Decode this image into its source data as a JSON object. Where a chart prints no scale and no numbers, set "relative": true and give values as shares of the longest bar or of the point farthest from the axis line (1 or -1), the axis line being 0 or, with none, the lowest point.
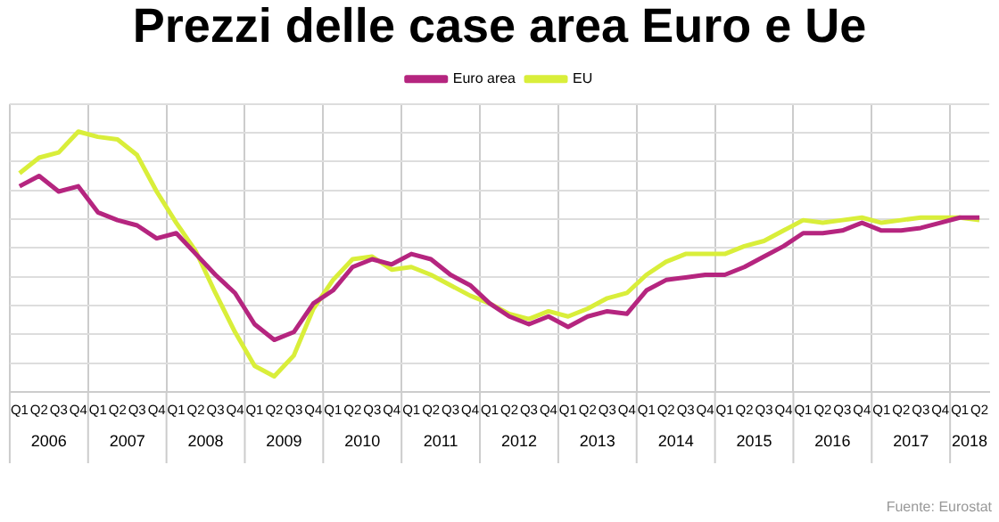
{
  "chart_data": {
    "type": "line",
    "title": "Prezzi delle case area Euro e Ue",
    "relative": true,
    "grid": true,
    "legend": "top",
    "categories": [
      "Q1",
      "Q2",
      "Q3",
      "Q4",
      "Q1",
      "Q2",
      "Q3",
      "Q4",
      "Q1",
      "Q2",
      "Q3",
      "Q4",
      "Q1",
      "Q2",
      "Q3",
      "Q4",
      "Q1",
      "Q2",
      "Q3",
      "Q4",
      "Q1",
      "Q2",
      "Q3",
      "Q4",
      "Q1",
      "Q2",
      "Q3",
      "Q4",
      "Q1",
      "Q2",
      "Q3",
      "Q4",
      "Q1",
      "Q2",
      "Q3",
      "Q4",
      "Q1",
      "Q2",
      "Q3",
      "Q4",
      "Q1",
      "Q2",
      "Q3",
      "Q4",
      "Q1",
      "Q2",
      "Q3",
      "Q4",
      "Q1",
      "Q2"
    ],
    "series": [
      {
        "name": "Euro area",
        "color": "#b5257f",
        "values": [
          0.79,
          0.83,
          0.77,
          0.79,
          0.69,
          0.66,
          0.64,
          0.59,
          0.61,
          0.53,
          0.45,
          0.38,
          0.26,
          0.2,
          0.23,
          0.34,
          0.39,
          0.48,
          0.51,
          0.49,
          0.53,
          0.51,
          0.45,
          0.41,
          0.34,
          0.29,
          0.26,
          0.29,
          0.25,
          0.29,
          0.31,
          0.3,
          0.39,
          0.43,
          0.44,
          0.45,
          0.45,
          0.48,
          0.52,
          0.56,
          0.61,
          0.61,
          0.62,
          0.65,
          0.62,
          0.62,
          0.63,
          0.65,
          0.67,
          0.67
        ]
      },
      {
        "name": "EU",
        "color": "#d9ee3a",
        "values": [
          0.84,
          0.9,
          0.92,
          1,
          0.98,
          0.97,
          0.91,
          0.77,
          0.65,
          0.54,
          0.38,
          0.23,
          0.1,
          0.06,
          0.14,
          0.32,
          0.43,
          0.51,
          0.52,
          0.47,
          0.48,
          0.45,
          0.41,
          0.37,
          0.34,
          0.3,
          0.28,
          0.31,
          0.29,
          0.32,
          0.36,
          0.38,
          0.45,
          0.5,
          0.53,
          0.53,
          0.53,
          0.56,
          0.58,
          0.62,
          0.66,
          0.65,
          0.66,
          0.67,
          0.65,
          0.66,
          0.67,
          0.67,
          0.67,
          0.66
        ]
      }
    ],
    "annotations": [
      "2006",
      "2007",
      "2008",
      "2009",
      "2010",
      "2011",
      "2012",
      "2013",
      "2014",
      "2015",
      "2016",
      "2017",
      "2018",
      "Fuente: Eurostat"
    ]
  }
}
